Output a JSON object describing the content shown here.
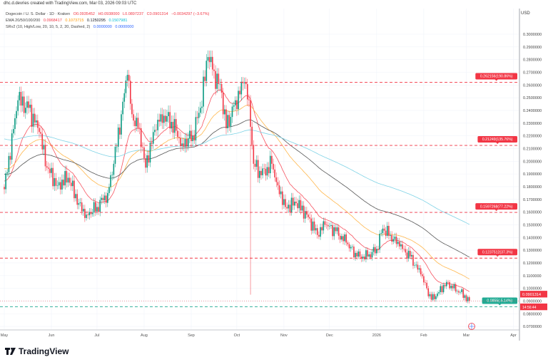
{
  "credit": "dhc.d.devries created with TradingView.com, Mar 03, 2026 09:03 UTC",
  "legend": {
    "symbol": "Dogecoin / U. S. Dollar · 1D · Kraken",
    "open": "O0.0935452",
    "high": "H0.0938000",
    "low": "L0.0897237",
    "close": "C0.0901314",
    "change": "−0.0034297 (−3.67%)",
    "ema_title": "EMA 20/50/100/200",
    "ema_values": [
      "0.0968417",
      "0.1073715",
      "0.1250295",
      "0.1507981"
    ],
    "sr_title": "SRv2 (10, High/Low, 20, 10, 5, 2, 20, Dashed, 2)",
    "sr_values": [
      "0.0000000",
      "0.0000000"
    ]
  },
  "currency": "USD",
  "brand": "TradingView",
  "colors": {
    "up": "#089981",
    "down": "#f23645",
    "ema20": "#f7525f",
    "ema50": "#ffb74d",
    "ema100": "#555555",
    "ema200": "#7fd3e6",
    "resistance": "#f23645",
    "support": "#22ab94"
  },
  "chart_data": {
    "type": "candlestick",
    "ylim": [
      0.065,
      0.315
    ],
    "y_ticks": [
      "0.3000000",
      "0.2900000",
      "0.2800000",
      "0.2700000",
      "0.2600000",
      "0.2500000",
      "0.2400000",
      "0.2300000",
      "0.2200000",
      "0.2100000",
      "0.2000000",
      "0.1900000",
      "0.1800000",
      "0.1700000",
      "0.1600000",
      "0.1500000",
      "0.1400000",
      "0.1300000",
      "0.1200000",
      "0.1100000",
      "0.1000000",
      "0.0900000",
      "0.0800000",
      "0.0700000"
    ],
    "x_ticks": [
      {
        "label": "May",
        "date": "2025-05-01"
      },
      {
        "label": "Jun",
        "date": "2025-06-01"
      },
      {
        "label": "Jul",
        "date": "2025-07-01"
      },
      {
        "label": "Aug",
        "date": "2025-08-01"
      },
      {
        "label": "Sep",
        "date": "2025-09-01"
      },
      {
        "label": "Oct",
        "date": "2025-10-01"
      },
      {
        "label": "Nov",
        "date": "2025-11-01"
      },
      {
        "label": "Dec",
        "date": "2025-12-01"
      },
      {
        "label": "2026",
        "date": "2026-01-01"
      },
      {
        "label": "Feb",
        "date": "2026-02-01"
      },
      {
        "label": "Mar",
        "date": "2026-03-01"
      },
      {
        "label": "Apr",
        "date": "2026-04-01"
      }
    ],
    "closes": [
      [
        "2025-05-01",
        0.178
      ],
      [
        "2025-05-10",
        0.248
      ],
      [
        "2025-05-17",
        0.242
      ],
      [
        "2025-05-24",
        0.223
      ],
      [
        "2025-05-29",
        0.195
      ],
      [
        "2025-06-05",
        0.181
      ],
      [
        "2025-06-12",
        0.187
      ],
      [
        "2025-06-19",
        0.167
      ],
      [
        "2025-06-24",
        0.158
      ],
      [
        "2025-07-01",
        0.164
      ],
      [
        "2025-07-08",
        0.175
      ],
      [
        "2025-07-12",
        0.198
      ],
      [
        "2025-07-17",
        0.237
      ],
      [
        "2025-07-21",
        0.268
      ],
      [
        "2025-07-24",
        0.237
      ],
      [
        "2025-07-29",
        0.226
      ],
      [
        "2025-08-02",
        0.195
      ],
      [
        "2025-08-07",
        0.223
      ],
      [
        "2025-08-12",
        0.237
      ],
      [
        "2025-08-19",
        0.231
      ],
      [
        "2025-08-26",
        0.214
      ],
      [
        "2025-09-02",
        0.22
      ],
      [
        "2025-09-07",
        0.242
      ],
      [
        "2025-09-12",
        0.282
      ],
      [
        "2025-09-16",
        0.271
      ],
      [
        "2025-09-21",
        0.254
      ],
      [
        "2025-09-24",
        0.226
      ],
      [
        "2025-09-30",
        0.248
      ],
      [
        "2025-10-06",
        0.262
      ],
      [
        "2025-10-09",
        0.248
      ],
      [
        "2025-10-12",
        0.198
      ],
      [
        "2025-10-17",
        0.189
      ],
      [
        "2025-10-24",
        0.198
      ],
      [
        "2025-10-28",
        0.181
      ],
      [
        "2025-11-02",
        0.164
      ],
      [
        "2025-11-09",
        0.167
      ],
      [
        "2025-11-16",
        0.158
      ],
      [
        "2025-11-23",
        0.142
      ],
      [
        "2025-11-28",
        0.15
      ],
      [
        "2025-12-05",
        0.145
      ],
      [
        "2025-12-12",
        0.136
      ],
      [
        "2025-12-19",
        0.125
      ],
      [
        "2025-12-26",
        0.125
      ],
      [
        "2026-01-01",
        0.131
      ],
      [
        "2026-01-05",
        0.147
      ],
      [
        "2026-01-10",
        0.142
      ],
      [
        "2026-01-16",
        0.133
      ],
      [
        "2026-01-23",
        0.125
      ],
      [
        "2026-01-30",
        0.111
      ],
      [
        "2026-02-06",
        0.091
      ],
      [
        "2026-02-11",
        0.097
      ],
      [
        "2026-02-16",
        0.105
      ],
      [
        "2026-02-20",
        0.1
      ],
      [
        "2026-02-25",
        0.097
      ],
      [
        "2026-03-03",
        0.0901314
      ]
    ],
    "notable_lows": [
      [
        "2025-10-10",
        0.095
      ]
    ],
    "levels": [
      {
        "value": 0.262156,
        "label": "0.262156(190.86%)",
        "kind": "resistance"
      },
      {
        "value": 0.21249,
        "label": "0.21249(135.76%)",
        "kind": "resistance"
      },
      {
        "value": 0.1597268,
        "label": "0.1597268(77.22%)",
        "kind": "resistance"
      },
      {
        "value": 0.1237512,
        "label": "0.1237512(37.3%)",
        "kind": "resistance"
      },
      {
        "value": 0.0855,
        "label": "0.0855(-5.14%)",
        "kind": "support"
      }
    ],
    "last_price": {
      "value": 0.0901314,
      "label": "0.0901314",
      "countdown": "14:56:44"
    },
    "series": [
      {
        "name": "EMA 20"
      },
      {
        "name": "EMA 50"
      },
      {
        "name": "EMA 100"
      },
      {
        "name": "EMA 200"
      }
    ]
  }
}
